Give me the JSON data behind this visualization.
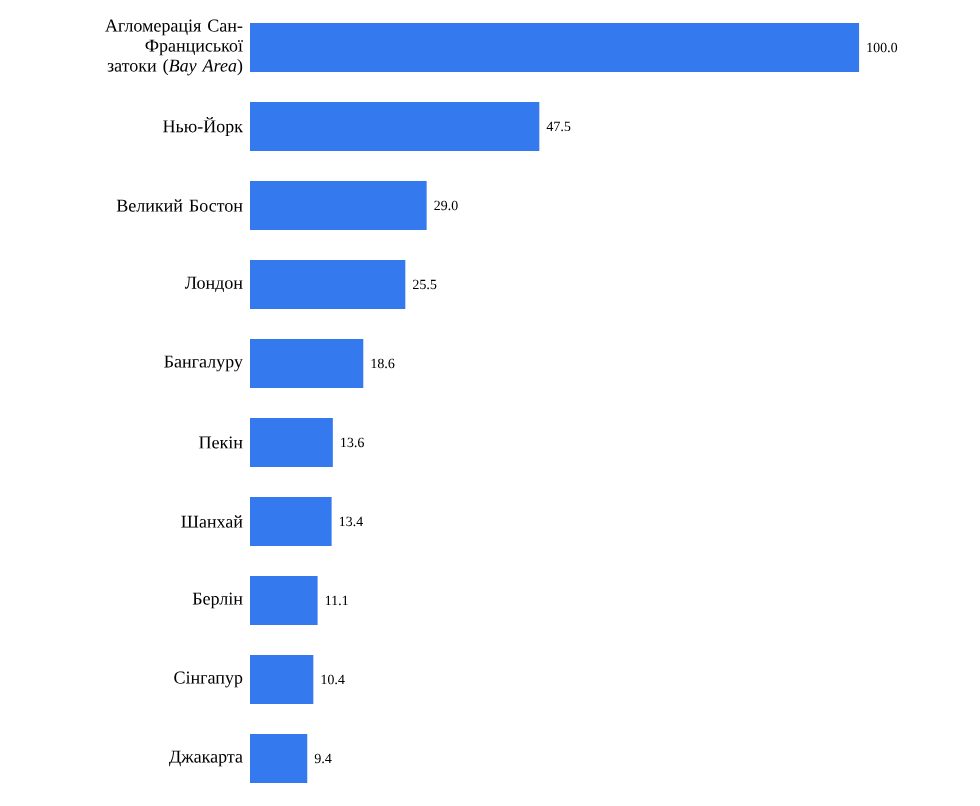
{
  "chart_data": {
    "type": "bar",
    "orientation": "horizontal",
    "color": "#3579ee",
    "categories": [
      "Агломерація Сан-Франциської затоки (*Bay Area*)",
      "Нью-Йорк",
      "Великий Бостон",
      "Лондон",
      "Бангалуру",
      "Пекін",
      "Шанхай",
      "Берлін",
      "Сінгапур",
      "Джакарта"
    ],
    "values": [
      100.0,
      47.5,
      29.0,
      25.5,
      18.6,
      13.6,
      13.4,
      11.1,
      10.4,
      9.4
    ],
    "value_labels": [
      "100.0",
      "47.5",
      "29.0",
      "25.5",
      "18.6",
      "13.6",
      "13.4",
      "11.1",
      "10.4",
      "9.4"
    ]
  }
}
